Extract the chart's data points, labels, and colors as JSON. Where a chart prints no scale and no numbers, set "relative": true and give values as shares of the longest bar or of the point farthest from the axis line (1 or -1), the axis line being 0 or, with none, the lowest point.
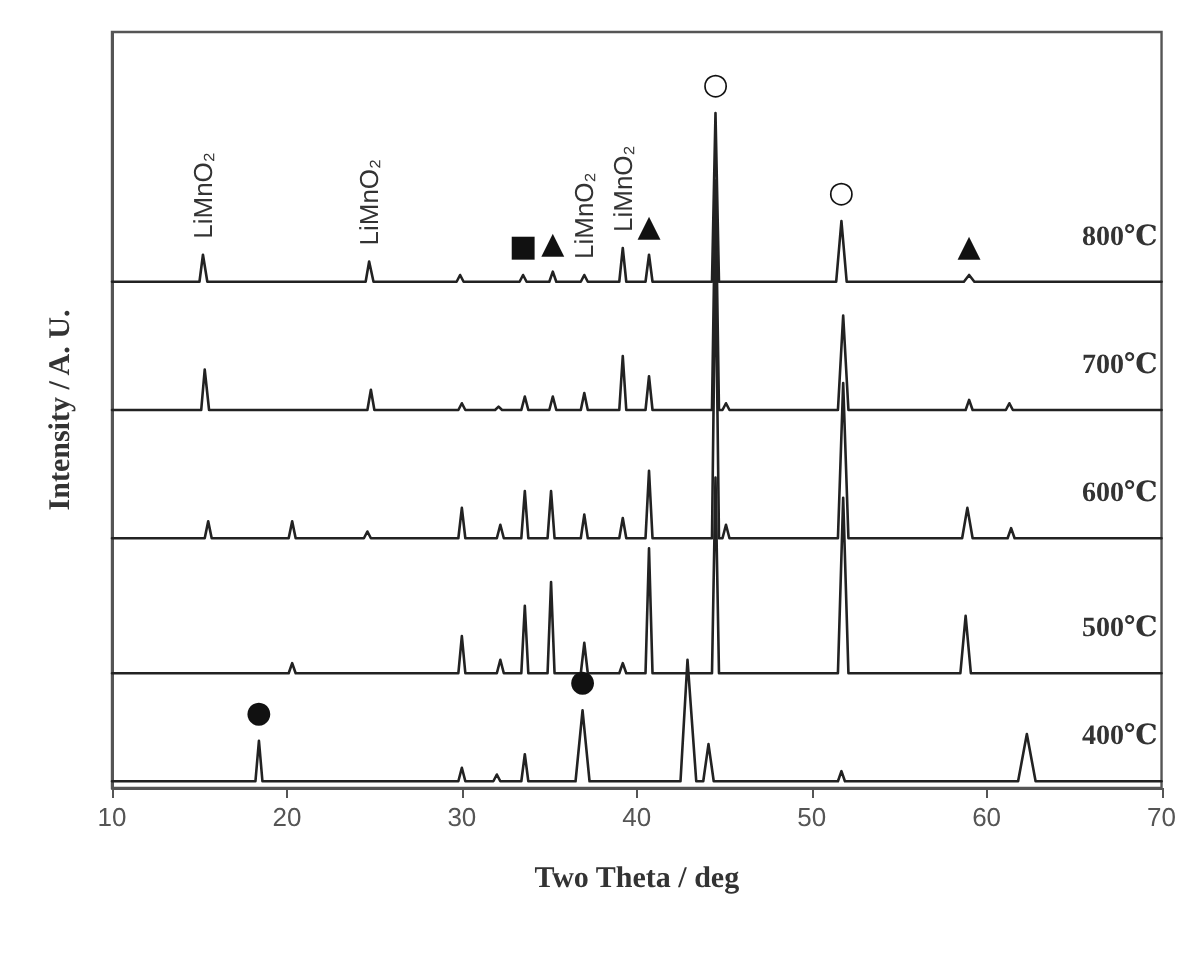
{
  "chart_data": {
    "type": "line",
    "relative": true,
    "xlabel": "Two Theta / deg",
    "ylabel": "Intensity / A. U.",
    "xlim": [
      10,
      70
    ],
    "xticks": [
      10,
      20,
      30,
      40,
      50,
      60,
      70
    ],
    "grid": false,
    "legend": false,
    "line_style": "solid",
    "annotations": [
      {
        "text": "LiMnO₂",
        "x": 15.2,
        "y": 0.79
      },
      {
        "text": "LiMnO₂",
        "x": 24.7,
        "y": 0.78
      },
      {
        "text": "LiMnO₂",
        "x": 37.0,
        "y": 0.76
      },
      {
        "text": "LiMnO₂",
        "x": 39.2,
        "y": 0.8
      },
      {
        "text": "■",
        "x": 33.5,
        "y": 0.76
      },
      {
        "text": "▲",
        "x": 35.2,
        "y": 0.765
      },
      {
        "text": "▲",
        "x": 40.7,
        "y": 0.79
      },
      {
        "text": "▲",
        "x": 59.0,
        "y": 0.76
      },
      {
        "text": "○",
        "x": 44.5,
        "y": 1
      },
      {
        "text": "○",
        "x": 51.7,
        "y": 0.84
      },
      {
        "text": "●",
        "x": 18.4,
        "y": 0.07
      },
      {
        "text": "●",
        "x": 36.9,
        "y": 0.115
      }
    ],
    "series": [
      {
        "name": "800℃",
        "color": "#222222",
        "x": [
          10,
          15.0,
          15.2,
          15.45,
          24.5,
          24.7,
          24.95,
          29.7,
          29.9,
          30.1,
          33.3,
          33.5,
          33.7,
          35.0,
          35.2,
          35.4,
          36.8,
          37.0,
          37.2,
          39.0,
          39.2,
          39.4,
          40.5,
          40.7,
          40.9,
          44.3,
          44.5,
          44.7,
          51.4,
          51.7,
          52.0,
          58.7,
          59.0,
          59.3,
          70
        ],
        "values": [
          0.75,
          0.75,
          0.79,
          0.75,
          0.75,
          0.78,
          0.75,
          0.75,
          0.76,
          0.75,
          0.75,
          0.76,
          0.75,
          0.75,
          0.765,
          0.75,
          0.75,
          0.76,
          0.75,
          0.75,
          0.8,
          0.75,
          0.75,
          0.79,
          0.75,
          0.75,
          1,
          0.75,
          0.75,
          0.84,
          0.75,
          0.75,
          0.76,
          0.75,
          0.75
        ]
      },
      {
        "name": "700℃",
        "color": "#222222",
        "x": [
          10,
          15.1,
          15.3,
          15.55,
          24.6,
          24.8,
          25.0,
          29.8,
          30.0,
          30.2,
          31.9,
          32.1,
          32.3,
          33.4,
          33.6,
          33.8,
          35.0,
          35.2,
          35.4,
          36.8,
          37.0,
          37.2,
          39.0,
          39.2,
          39.4,
          40.5,
          40.7,
          40.9,
          44.3,
          44.5,
          44.7,
          44.9,
          45.1,
          45.3,
          51.5,
          51.8,
          52.1,
          58.8,
          59.0,
          59.2,
          61.1,
          61.3,
          61.5,
          70
        ],
        "values": [
          0.56,
          0.56,
          0.62,
          0.56,
          0.56,
          0.59,
          0.56,
          0.56,
          0.57,
          0.56,
          0.56,
          0.565,
          0.56,
          0.56,
          0.58,
          0.56,
          0.56,
          0.58,
          0.56,
          0.56,
          0.585,
          0.56,
          0.56,
          0.64,
          0.56,
          0.56,
          0.61,
          0.56,
          0.56,
          0.9,
          0.56,
          0.56,
          0.57,
          0.56,
          0.56,
          0.7,
          0.56,
          0.56,
          0.575,
          0.56,
          0.56,
          0.57,
          0.56,
          0.56
        ]
      },
      {
        "name": "600℃",
        "color": "#222222",
        "x": [
          10,
          15.3,
          15.5,
          15.7,
          20.1,
          20.3,
          20.5,
          24.4,
          24.6,
          24.8,
          29.8,
          30.0,
          30.2,
          32.0,
          32.2,
          32.4,
          33.4,
          33.6,
          33.8,
          34.9,
          35.1,
          35.3,
          36.8,
          37.0,
          37.2,
          39.0,
          39.2,
          39.4,
          40.5,
          40.7,
          40.9,
          44.3,
          44.5,
          44.7,
          44.9,
          45.1,
          45.3,
          51.5,
          51.8,
          52.1,
          58.6,
          58.9,
          59.2,
          61.2,
          61.4,
          61.6,
          70
        ],
        "values": [
          0.37,
          0.37,
          0.395,
          0.37,
          0.37,
          0.395,
          0.37,
          0.37,
          0.38,
          0.37,
          0.37,
          0.415,
          0.37,
          0.37,
          0.39,
          0.37,
          0.37,
          0.44,
          0.37,
          0.37,
          0.44,
          0.37,
          0.37,
          0.405,
          0.37,
          0.37,
          0.4,
          0.37,
          0.37,
          0.47,
          0.37,
          0.37,
          0.8,
          0.37,
          0.37,
          0.39,
          0.37,
          0.37,
          0.6,
          0.37,
          0.37,
          0.415,
          0.37,
          0.37,
          0.385,
          0.37,
          0.37
        ]
      },
      {
        "name": "500℃",
        "color": "#222222",
        "x": [
          10,
          20.1,
          20.3,
          20.5,
          29.8,
          30.0,
          30.2,
          32.0,
          32.2,
          32.4,
          33.4,
          33.6,
          33.8,
          34.9,
          35.1,
          35.3,
          36.8,
          37.0,
          37.2,
          39.0,
          39.2,
          39.4,
          40.5,
          40.7,
          40.9,
          44.3,
          44.5,
          44.7,
          51.5,
          51.8,
          52.1,
          58.5,
          58.8,
          59.1,
          70
        ],
        "values": [
          0.17,
          0.17,
          0.185,
          0.17,
          0.17,
          0.225,
          0.17,
          0.17,
          0.19,
          0.17,
          0.17,
          0.27,
          0.17,
          0.17,
          0.305,
          0.17,
          0.17,
          0.215,
          0.17,
          0.17,
          0.185,
          0.17,
          0.17,
          0.355,
          0.17,
          0.17,
          0.46,
          0.17,
          0.17,
          0.43,
          0.17,
          0.17,
          0.255,
          0.17,
          0.17
        ]
      },
      {
        "name": "400℃",
        "color": "#222222",
        "x": [
          10,
          18.2,
          18.4,
          18.6,
          29.8,
          30.0,
          30.2,
          31.8,
          32.0,
          32.2,
          33.4,
          33.6,
          33.8,
          36.5,
          36.9,
          37.3,
          42.5,
          42.9,
          43.4,
          43.8,
          44.1,
          44.4,
          51.5,
          51.7,
          51.9,
          61.8,
          62.3,
          62.8,
          70
        ],
        "values": [
          0.01,
          0.01,
          0.07,
          0.01,
          0.01,
          0.03,
          0.01,
          0.01,
          0.02,
          0.01,
          0.01,
          0.05,
          0.01,
          0.01,
          0.115,
          0.01,
          0.01,
          0.19,
          0.01,
          0.01,
          0.065,
          0.01,
          0.01,
          0.025,
          0.01,
          0.01,
          0.08,
          0.01,
          0.01
        ]
      }
    ]
  }
}
